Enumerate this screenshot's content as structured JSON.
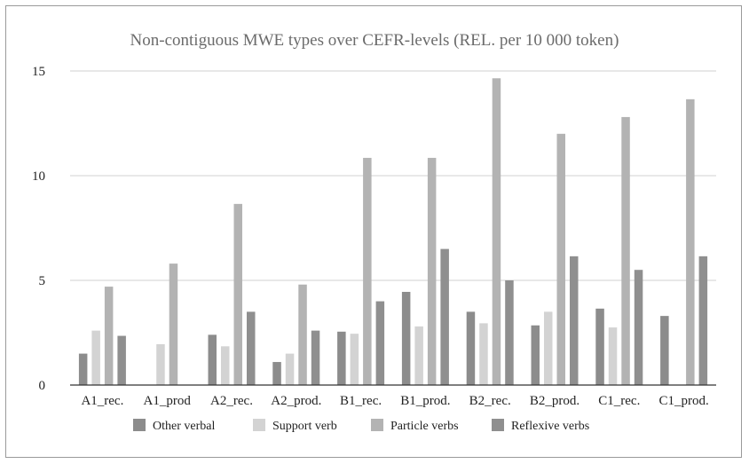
{
  "chart_data": {
    "type": "bar",
    "title": "Non-contiguous MWE types over CEFR-levels (REL. per 10 000 token)",
    "xlabel": "",
    "ylabel": "",
    "categories": [
      "A1_rec.",
      "A1_prod",
      "A2_rec.",
      "A2_prod.",
      "B1_rec.",
      "B1_prod.",
      "B2_rec.",
      "B2_prod.",
      "C1_rec.",
      "C1_prod."
    ],
    "ylim": [
      0,
      15
    ],
    "yticks": [
      0,
      5,
      10,
      15
    ],
    "grid": true,
    "legend_position": "bottom",
    "series": [
      {
        "name": "Other verbal",
        "color": "#8c8c8c",
        "values": [
          1.5,
          0,
          2.4,
          1.1,
          2.55,
          4.45,
          3.5,
          2.85,
          3.65,
          3.3
        ]
      },
      {
        "name": "Support verb",
        "color": "#d3d3d3",
        "values": [
          2.6,
          1.95,
          1.85,
          1.5,
          2.45,
          2.8,
          2.95,
          3.5,
          2.75,
          0
        ]
      },
      {
        "name": "Particle verbs",
        "color": "#b3b3b3",
        "values": [
          4.7,
          5.8,
          8.65,
          4.8,
          10.85,
          10.85,
          14.65,
          12.0,
          12.8,
          13.65
        ]
      },
      {
        "name": "Reflexive verbs",
        "color": "#8f8f8f",
        "values": [
          2.35,
          0,
          3.5,
          2.6,
          4.0,
          6.5,
          5.0,
          6.15,
          5.5,
          6.15
        ]
      }
    ]
  }
}
